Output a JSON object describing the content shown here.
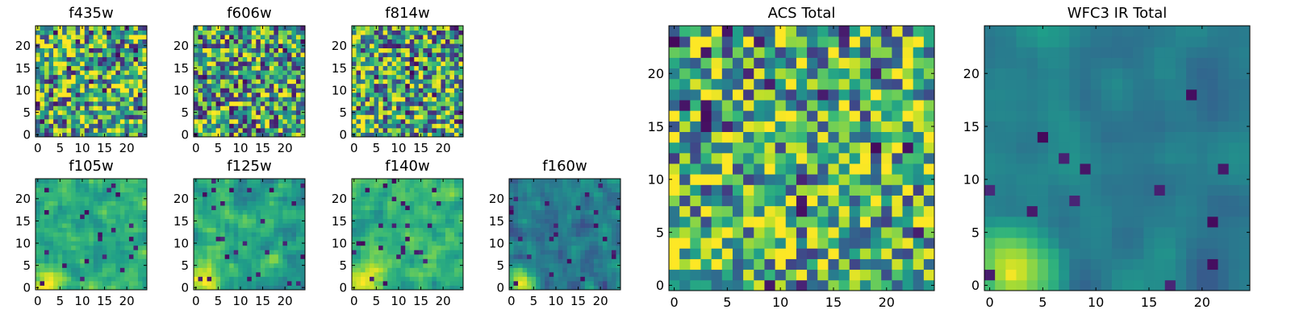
{
  "chart_data": [
    {
      "id": "f435w",
      "type": "heatmap",
      "title": "f435w",
      "size": 25,
      "xticks": [
        0,
        5,
        10,
        15,
        20
      ],
      "yticks": [
        0,
        5,
        10,
        15,
        20
      ],
      "seed": 11,
      "base": 0.62,
      "noise": 0.5,
      "smooth": 0,
      "dark": 0.05,
      "bright_corner": 0.0
    },
    {
      "id": "f606w",
      "type": "heatmap",
      "title": "f606w",
      "size": 25,
      "xticks": [
        0,
        5,
        10,
        15,
        20
      ],
      "yticks": [
        0,
        5,
        10,
        15,
        20
      ],
      "seed": 23,
      "base": 0.58,
      "noise": 0.5,
      "smooth": 0,
      "dark": 0.05,
      "bright_corner": 0.25
    },
    {
      "id": "f814w",
      "type": "heatmap",
      "title": "f814w",
      "size": 25,
      "xticks": [
        0,
        5,
        10,
        15,
        20
      ],
      "yticks": [
        0,
        5,
        10,
        15,
        20
      ],
      "seed": 37,
      "base": 0.6,
      "noise": 0.5,
      "smooth": 0,
      "dark": 0.05,
      "bright_corner": 0.2
    },
    {
      "id": "f105w",
      "type": "heatmap",
      "title": "f105w",
      "size": 25,
      "xticks": [
        0,
        5,
        10,
        15,
        20
      ],
      "yticks": [
        0,
        5,
        10,
        15,
        20
      ],
      "seed": 41,
      "base": 0.62,
      "noise": 0.35,
      "smooth": 1,
      "dark": 0.04,
      "bright_corner": 0.45
    },
    {
      "id": "f125w",
      "type": "heatmap",
      "title": "f125w",
      "size": 25,
      "xticks": [
        0,
        5,
        10,
        15,
        20
      ],
      "yticks": [
        0,
        5,
        10,
        15,
        20
      ],
      "seed": 53,
      "base": 0.6,
      "noise": 0.38,
      "smooth": 1,
      "dark": 0.05,
      "bright_corner": 0.45
    },
    {
      "id": "f140w",
      "type": "heatmap",
      "title": "f140w",
      "size": 25,
      "xticks": [
        0,
        5,
        10,
        15,
        20
      ],
      "yticks": [
        0,
        5,
        10,
        15,
        20
      ],
      "seed": 67,
      "base": 0.66,
      "noise": 0.35,
      "smooth": 1,
      "dark": 0.03,
      "bright_corner": 0.45
    },
    {
      "id": "f160w",
      "type": "heatmap",
      "title": "f160w",
      "size": 25,
      "xticks": [
        0,
        5,
        10,
        15,
        20
      ],
      "yticks": [
        0,
        5,
        10,
        15,
        20
      ],
      "seed": 79,
      "base": 0.42,
      "noise": 0.35,
      "smooth": 1,
      "dark": 0.05,
      "bright_corner": 0.6
    },
    {
      "id": "acs-total",
      "type": "heatmap",
      "title": "ACS Total",
      "size": 25,
      "xticks": [
        0,
        5,
        10,
        15,
        20
      ],
      "yticks": [
        0,
        5,
        10,
        15,
        20
      ],
      "seed": 97,
      "base": 0.62,
      "noise": 0.45,
      "smooth": 0,
      "dark": 0.04,
      "bright_corner": 0.25
    },
    {
      "id": "wfc3-ir-total",
      "type": "heatmap",
      "title": "WFC3 IR Total",
      "size": 25,
      "xticks": [
        0,
        5,
        10,
        15,
        20
      ],
      "yticks": [
        0,
        5,
        10,
        15,
        20
      ],
      "seed": 131,
      "base": 0.42,
      "noise": 0.3,
      "smooth": 2,
      "dark": 0.03,
      "bright_corner": 0.6
    }
  ],
  "colormap": [
    "#440154",
    "#482878",
    "#3e4a89",
    "#31688e",
    "#26828e",
    "#1f9e89",
    "#35b779",
    "#6ece58",
    "#b5de2b",
    "#fde725"
  ]
}
